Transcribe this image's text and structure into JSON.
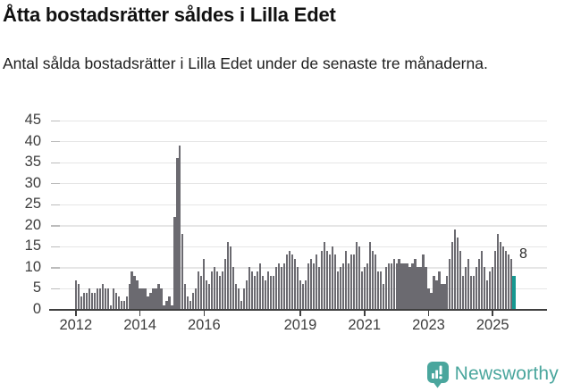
{
  "header": {
    "title": "Åtta bostadsrätter såldes i Lilla Edet",
    "subtitle": "Antal sålda bostadsrätter i Lilla Edet under de senaste tre månaderna."
  },
  "chart_data": {
    "type": "bar",
    "title": "Åtta bostadsrätter såldes i Lilla Edet",
    "subtitle": "Antal sålda bostadsrätter i Lilla Edet under de senaste tre månaderna.",
    "x_unit": "month",
    "x_start": "2012-01",
    "x_end": "2025-09",
    "ylim": [
      0,
      45
    ],
    "yticks": [
      0,
      5,
      10,
      15,
      20,
      25,
      30,
      35,
      40,
      45
    ],
    "grid": "horizontal",
    "legend": "none",
    "bar_color": "#6b6a70",
    "highlight_color": "#169891",
    "highlight_index": 164,
    "highlight_label": "8",
    "highlight_value": 8,
    "xticks": [
      {
        "label": "2012",
        "month_index": 0
      },
      {
        "label": "2014",
        "month_index": 24
      },
      {
        "label": "2016",
        "month_index": 48
      },
      {
        "label": "2019",
        "month_index": 84
      },
      {
        "label": "2021",
        "month_index": 108
      },
      {
        "label": "2023",
        "month_index": 132
      },
      {
        "label": "2025",
        "month_index": 156
      }
    ],
    "values": [
      7,
      6,
      3,
      4,
      4,
      5,
      4,
      4,
      5,
      5,
      6,
      5,
      5,
      1,
      5,
      4,
      3,
      2,
      2,
      3,
      6,
      9,
      8,
      7,
      5,
      5,
      5,
      3,
      4,
      5,
      5,
      6,
      5,
      1,
      2,
      3,
      1,
      22,
      36,
      39,
      18,
      6,
      3,
      2,
      4,
      5,
      9,
      8,
      12,
      7,
      6,
      9,
      10,
      9,
      8,
      9,
      12,
      16,
      15,
      10,
      6,
      5,
      2,
      5,
      7,
      10,
      9,
      8,
      9,
      11,
      8,
      7,
      9,
      8,
      8,
      10,
      11,
      10,
      11,
      13,
      14,
      13,
      12,
      10,
      7,
      6,
      7,
      11,
      12,
      11,
      13,
      10,
      14,
      16,
      14,
      13,
      15,
      13,
      9,
      10,
      11,
      14,
      11,
      13,
      13,
      16,
      15,
      9,
      10,
      11,
      16,
      14,
      13,
      9,
      9,
      6,
      10,
      11,
      11,
      12,
      11,
      12,
      11,
      11,
      11,
      10,
      11,
      12,
      10,
      10,
      13,
      10,
      5,
      4,
      8,
      7,
      9,
      6,
      6,
      8,
      12,
      16,
      19,
      17,
      14,
      8,
      10,
      12,
      8,
      8,
      10,
      12,
      14,
      10,
      7,
      9,
      10,
      14,
      18,
      16,
      15,
      14,
      13,
      12,
      8
    ]
  },
  "footer": {
    "brand": "Newsworthy",
    "brand_color": "#4aa69d"
  }
}
